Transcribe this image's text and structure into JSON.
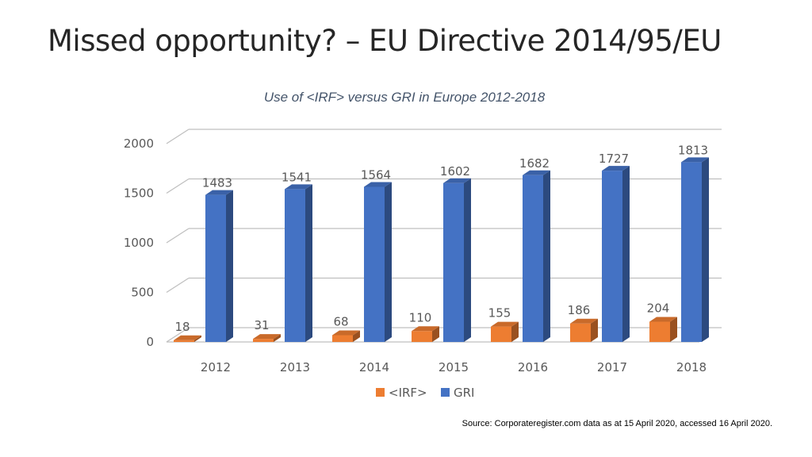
{
  "slide": {
    "title": "Missed opportunity? – EU Directive 2014/95/EU",
    "source": "Source: Corporateregister.com data as at 15 April 2020, accessed 16 April 2020."
  },
  "chart_data": {
    "type": "bar",
    "title": "Use of <IRF> versus GRI in Europe 2012-2018",
    "xlabel": "",
    "ylabel": "",
    "categories": [
      "2012",
      "2013",
      "2014",
      "2015",
      "2016",
      "2017",
      "2018"
    ],
    "series": [
      {
        "name": "<IRF>",
        "color": "#ed7d31",
        "values": [
          18,
          31,
          68,
          110,
          155,
          186,
          204
        ]
      },
      {
        "name": "GRI",
        "color": "#4472c4",
        "values": [
          1483,
          1541,
          1564,
          1602,
          1682,
          1727,
          1813
        ]
      }
    ],
    "ylim": [
      0,
      2000
    ],
    "yticks": [
      0,
      500,
      1000,
      1500,
      2000
    ],
    "grid": true,
    "legend_position": "bottom",
    "style": "3d-clustered-column"
  }
}
